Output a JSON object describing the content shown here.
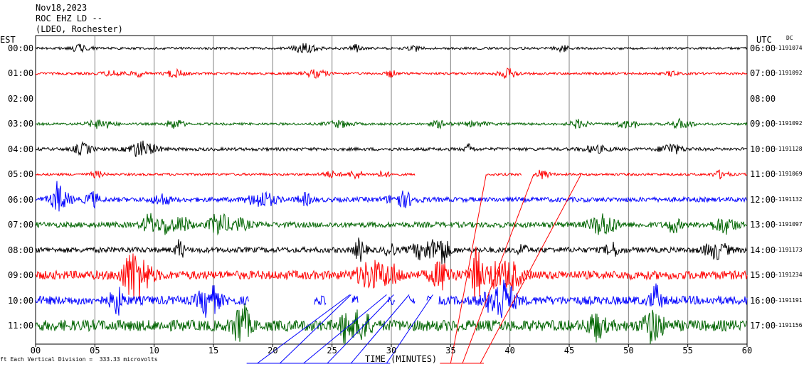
{
  "header": {
    "date": "Nov18,2023",
    "station": "ROC EHZ LD --",
    "network": "(LDEO, Rochester)"
  },
  "left_axis_title": "EST",
  "right_axis_title": "UTC",
  "dc_label": "DC",
  "footer": {
    "scale_text": "Each Vertical Division =  333.33 microvolts",
    "scale_prefix": "ft"
  },
  "colors": {
    "black": "#000000",
    "red": "#ff0000",
    "blue": "#0000ff",
    "green": "#006400",
    "grid": "#808080"
  },
  "chart_data": {
    "type": "line",
    "title": "",
    "xlabel": "TIME (MINUTES)",
    "ylabel": "",
    "xlim": [
      0,
      60
    ],
    "x_ticks": [
      "00",
      "05",
      "10",
      "15",
      "20",
      "25",
      "30",
      "35",
      "40",
      "45",
      "50",
      "55",
      "60"
    ],
    "grid": true,
    "rows": [
      {
        "est": "00:00",
        "utc": "06:00",
        "dc": "1191074",
        "color": "black",
        "amp": 3,
        "has_trace": true
      },
      {
        "est": "01:00",
        "utc": "07:00",
        "dc": "1191092",
        "color": "red",
        "amp": 3,
        "has_trace": true
      },
      {
        "est": "02:00",
        "utc": "08:00",
        "dc": "",
        "color": "blue",
        "amp": 0,
        "has_trace": false
      },
      {
        "est": "03:00",
        "utc": "09:00",
        "dc": "1191092",
        "color": "green",
        "amp": 3,
        "has_trace": true
      },
      {
        "est": "04:00",
        "utc": "10:00",
        "dc": "1191128",
        "color": "black",
        "amp": 4,
        "has_trace": true
      },
      {
        "est": "05:00",
        "utc": "11:00",
        "dc": "1191069",
        "color": "red",
        "amp": 3,
        "has_trace": true,
        "gaps": [
          [
            32,
            38
          ],
          [
            41,
            42
          ]
        ]
      },
      {
        "est": "06:00",
        "utc": "12:00",
        "dc": "1191132",
        "color": "blue",
        "amp": 6,
        "has_trace": true
      },
      {
        "est": "07:00",
        "utc": "13:00",
        "dc": "1191097",
        "color": "green",
        "amp": 7,
        "has_trace": true
      },
      {
        "est": "08:00",
        "utc": "14:00",
        "dc": "1191173",
        "color": "black",
        "amp": 7,
        "has_trace": true
      },
      {
        "est": "09:00",
        "utc": "15:00",
        "dc": "1191234",
        "color": "red",
        "amp": 11,
        "has_trace": true
      },
      {
        "est": "10:00",
        "utc": "16:00",
        "dc": "1191191",
        "color": "blue",
        "amp": 11,
        "has_trace": true,
        "gaps": [
          [
            18,
            23.5
          ],
          [
            24.5,
            26.7
          ],
          [
            27.2,
            29.7
          ],
          [
            30.3,
            31.5
          ],
          [
            32,
            33
          ],
          [
            33.4,
            34
          ]
        ]
      },
      {
        "est": "11:00",
        "utc": "17:00",
        "dc": "1191156",
        "color": "green",
        "amp": 14,
        "has_trace": true
      }
    ],
    "dropouts": [
      {
        "color": "blue",
        "x_bottom": [
          18.7,
          20.6,
          22.6,
          24.6,
          26.6,
          29.6
        ],
        "x_top": [
          26.5,
          26.6,
          29.6,
          30.2,
          31.5,
          33.5
        ]
      },
      {
        "color": "red",
        "x_bottom": [
          35,
          36,
          37.5
        ],
        "x_top": [
          38,
          42,
          46
        ]
      }
    ]
  }
}
